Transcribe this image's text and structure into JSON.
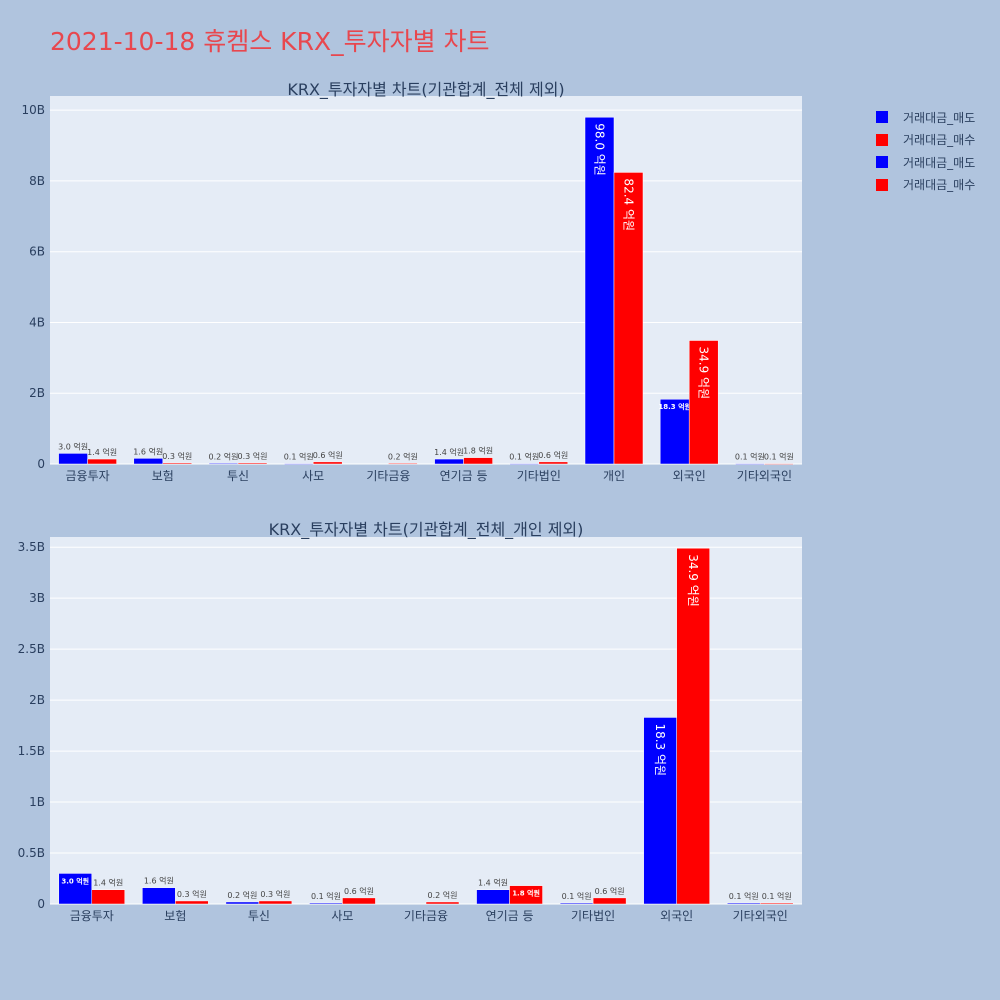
{
  "page": {
    "title": "2021-10-18 휴켐스 KRX_투자자별 차트"
  },
  "legend": [
    {
      "label": "거래대금_매도",
      "color": "#0000ff"
    },
    {
      "label": "거래대금_매수",
      "color": "#ff0000"
    },
    {
      "label": "거래대금_매도",
      "color": "#0000ff"
    },
    {
      "label": "거래대금_매수",
      "color": "#ff0000"
    }
  ],
  "colors": {
    "sell": "#0000ff",
    "buy": "#ff0000",
    "plot_bg": "#e5ecf6",
    "page_bg": "#b0c4de",
    "axis_text": "#2a3f5f"
  },
  "chart_data": [
    {
      "type": "bar",
      "title": "KRX_투자자별 차트(기관합계_전체 제외)",
      "categories": [
        "금융투자",
        "보험",
        "투신",
        "사모",
        "기타금융",
        "연기금 등",
        "기타법인",
        "개인",
        "외국인",
        "기타외국인"
      ],
      "ylim": [
        0,
        10400000000
      ],
      "yticks": [
        0,
        2000000000,
        4000000000,
        6000000000,
        8000000000,
        10000000000
      ],
      "ytick_labels": [
        "0",
        "2B",
        "4B",
        "6B",
        "8B",
        "10B"
      ],
      "grid": true,
      "series": [
        {
          "name": "거래대금_매도",
          "color": "#0000ff",
          "values": [
            300000000,
            160000000,
            20000000,
            10000000,
            0,
            140000000,
            10000000,
            9800000000,
            1830000000,
            10000000
          ],
          "labels": [
            "3.0 억원",
            "1.6 억원",
            "0.2 억원",
            "0.1 억원",
            "",
            "1.4 억원",
            "0.1 억원",
            "98.0 억원",
            "18.3 억원",
            "0.1 억원"
          ]
        },
        {
          "name": "거래대금_매수",
          "color": "#ff0000",
          "values": [
            140000000,
            30000000,
            30000000,
            60000000,
            20000000,
            180000000,
            60000000,
            8240000000,
            3490000000,
            10000000
          ],
          "labels": [
            "1.4 억원",
            "0.3 억원",
            "0.3 억원",
            "0.6 억원",
            "0.2 억원",
            "1.8 억원",
            "0.6 억원",
            "82.4 억원",
            "34.9 억원",
            "0.1 억원"
          ]
        }
      ]
    },
    {
      "type": "bar",
      "title": "KRX_투자자별 차트(기관합계_전체_개인 제외)",
      "categories": [
        "금융투자",
        "보험",
        "투신",
        "사모",
        "기타금융",
        "연기금 등",
        "기타법인",
        "외국인",
        "기타외국인"
      ],
      "ylim": [
        0,
        3600000000
      ],
      "yticks": [
        0,
        500000000,
        1000000000,
        1500000000,
        2000000000,
        2500000000,
        3000000000,
        3500000000
      ],
      "ytick_labels": [
        "0",
        "0.5B",
        "1B",
        "1.5B",
        "2B",
        "2.5B",
        "3B",
        "3.5B"
      ],
      "grid": true,
      "series": [
        {
          "name": "거래대금_매도",
          "color": "#0000ff",
          "values": [
            300000000,
            160000000,
            20000000,
            10000000,
            0,
            140000000,
            10000000,
            1830000000,
            10000000
          ],
          "labels": [
            "3.0 억원",
            "1.6 억원",
            "0.2 억원",
            "0.1 억원",
            "",
            "1.4 억원",
            "0.1 억원",
            "18.3 억원",
            "0.1 억원"
          ]
        },
        {
          "name": "거래대금_매수",
          "color": "#ff0000",
          "values": [
            140000000,
            30000000,
            30000000,
            60000000,
            20000000,
            180000000,
            60000000,
            3490000000,
            10000000
          ],
          "labels": [
            "1.4 억원",
            "0.3 억원",
            "0.3 억원",
            "0.6 억원",
            "0.2 억원",
            "1.8 억원",
            "0.6 억원",
            "34.9 억원",
            "0.1 억원"
          ]
        }
      ]
    }
  ]
}
